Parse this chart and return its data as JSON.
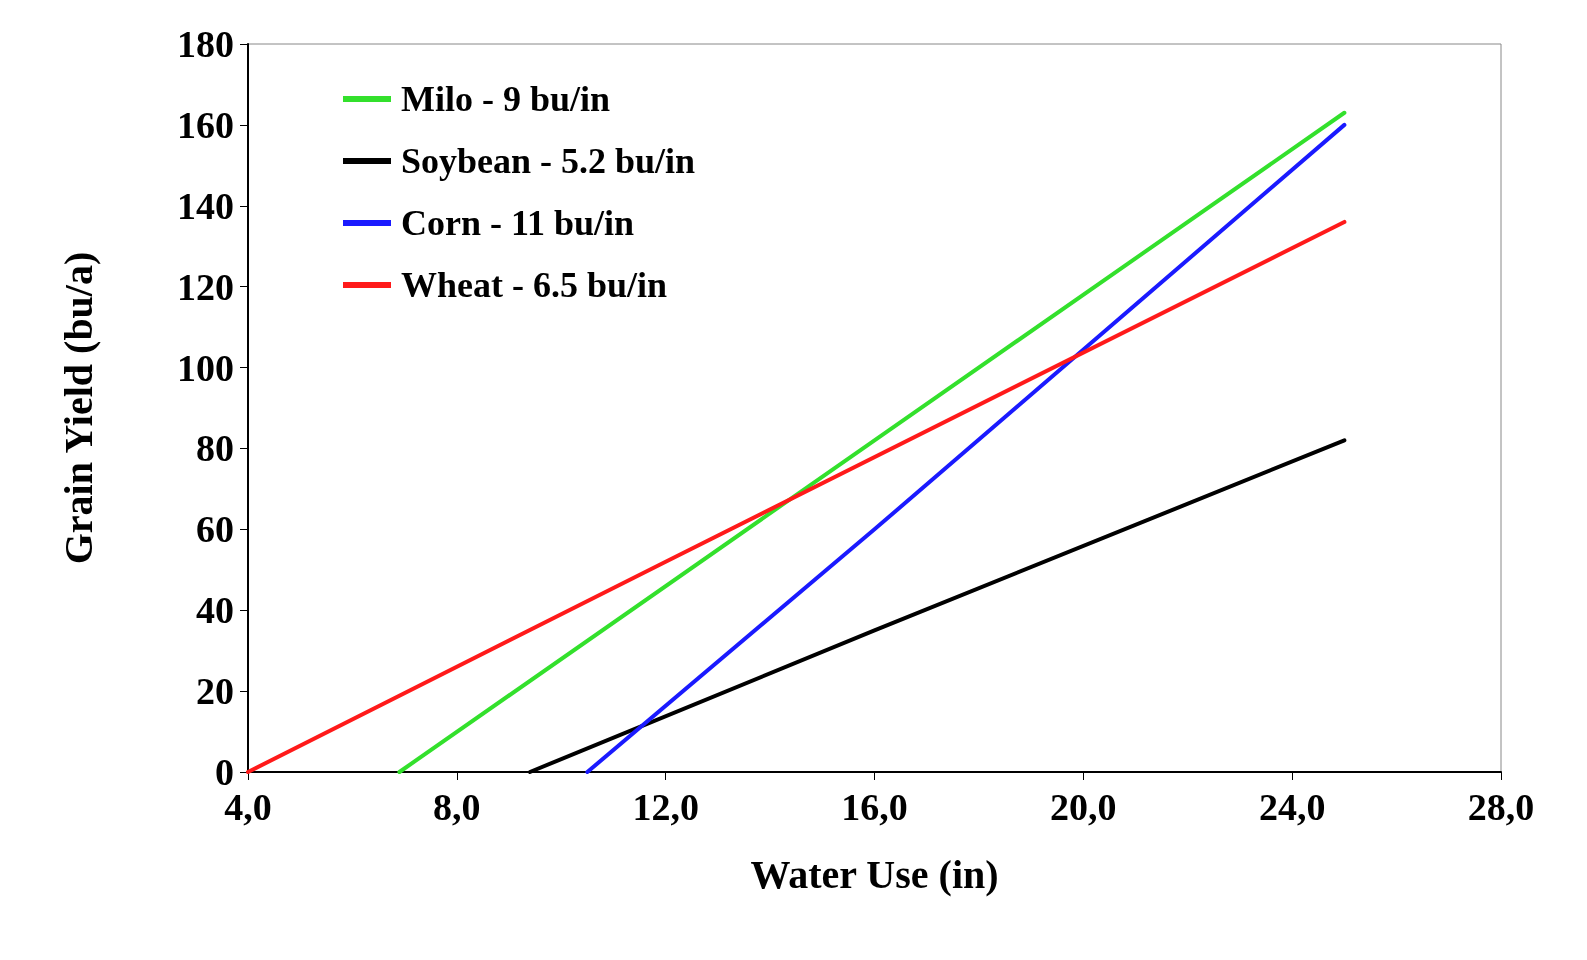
{
  "chart_data": {
    "type": "line",
    "xlabel": "Water Use (in)",
    "ylabel": "Grain Yield (bu/a)",
    "xlim": [
      4,
      28
    ],
    "xticks": [
      {
        "value": 4,
        "label": "4,0"
      },
      {
        "value": 8,
        "label": "8,0"
      },
      {
        "value": 12,
        "label": "12,0"
      },
      {
        "value": 16,
        "label": "16,0"
      },
      {
        "value": 20,
        "label": "20,0"
      },
      {
        "value": 24,
        "label": "24,0"
      },
      {
        "value": 28,
        "label": "28,0"
      }
    ],
    "ylim": [
      0,
      180
    ],
    "yticks": [
      0,
      20,
      40,
      60,
      80,
      100,
      120,
      140,
      160,
      180
    ],
    "grid": false,
    "legend": "top left",
    "marker": "none",
    "line_style": "solid",
    "series": [
      {
        "name": "Milo - 9 bu/in",
        "color": "#33e02c",
        "x": [
          6.9,
          16,
          25
        ],
        "values": [
          0,
          82,
          163
        ]
      },
      {
        "name": "Soybean - 5.2 bu/in",
        "color": "#000000",
        "x": [
          9.4,
          16,
          25
        ],
        "values": [
          0,
          35,
          82
        ]
      },
      {
        "name": "Corn - 11 bu/in",
        "color": "#1a1aff",
        "x": [
          10.5,
          16,
          25
        ],
        "values": [
          0,
          60,
          160
        ]
      },
      {
        "name": "Wheat - 6.5 bu/in",
        "color": "#ff1a1a",
        "x": [
          4,
          12,
          25
        ],
        "values": [
          0,
          52,
          136
        ]
      }
    ]
  }
}
